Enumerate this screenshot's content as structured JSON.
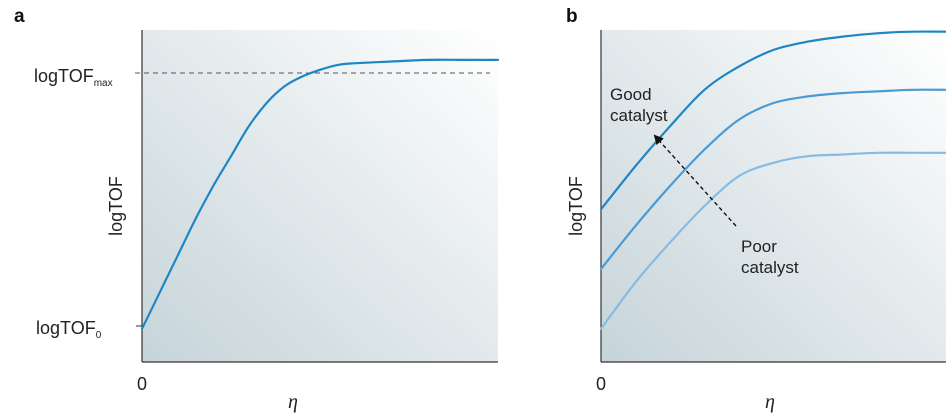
{
  "colors": {
    "curve_main": "#1f86c4",
    "curve_mid": "#4a9bd4",
    "curve_light": "#87bbe3",
    "bg_dark": "#c6d4d9",
    "bg_light": "#ffffff",
    "axis": "#333333"
  },
  "chart_data": [
    {
      "panel": "a",
      "type": "line",
      "xlabel": "η",
      "ylabel": "logTOF",
      "x_tick": "0",
      "y_ticks": [
        {
          "main": "logTOF",
          "sub": "0"
        },
        {
          "main": "logTOF",
          "sub": "max"
        }
      ],
      "reference_line": "dashed horizontal at logTOFmax",
      "xlim": [
        0,
        1
      ],
      "ylim": [
        0,
        1
      ],
      "series": [
        {
          "x": [
            0,
            0.05,
            0.1,
            0.15,
            0.2,
            0.25,
            0.3,
            0.35,
            0.4,
            0.45,
            0.5,
            0.55,
            0.6,
            0.7,
            0.8,
            0.9,
            1.0
          ],
          "y": [
            0.1,
            0.21,
            0.32,
            0.43,
            0.53,
            0.62,
            0.71,
            0.78,
            0.83,
            0.86,
            0.88,
            0.895,
            0.9,
            0.905,
            0.91,
            0.91,
            0.91
          ],
          "color": "#1f86c4"
        }
      ]
    },
    {
      "panel": "b",
      "type": "line",
      "xlabel": "η",
      "ylabel": "logTOF",
      "x_tick": "0",
      "xlim": [
        0,
        1
      ],
      "ylim": [
        0,
        1
      ],
      "annotations": {
        "good": [
          "Good",
          "catalyst"
        ],
        "poor": [
          "Poor",
          "catalyst"
        ]
      },
      "series": [
        {
          "x": [
            0,
            0.1,
            0.2,
            0.3,
            0.4,
            0.5,
            0.6,
            0.7,
            0.8,
            0.9,
            1.0
          ],
          "y": [
            0.46,
            0.59,
            0.71,
            0.82,
            0.89,
            0.94,
            0.965,
            0.98,
            0.99,
            0.995,
            0.995
          ],
          "color": "#1f86c4"
        },
        {
          "x": [
            0,
            0.1,
            0.2,
            0.3,
            0.4,
            0.5,
            0.6,
            0.7,
            0.8,
            0.9,
            1.0
          ],
          "y": [
            0.28,
            0.41,
            0.53,
            0.64,
            0.73,
            0.78,
            0.8,
            0.81,
            0.815,
            0.82,
            0.82
          ],
          "color": "#4a9bd4"
        },
        {
          "x": [
            0,
            0.1,
            0.2,
            0.3,
            0.4,
            0.5,
            0.6,
            0.7,
            0.8,
            0.9,
            1.0
          ],
          "y": [
            0.1,
            0.24,
            0.36,
            0.47,
            0.56,
            0.6,
            0.62,
            0.625,
            0.63,
            0.63,
            0.63
          ],
          "color": "#87bbe3"
        }
      ]
    }
  ]
}
